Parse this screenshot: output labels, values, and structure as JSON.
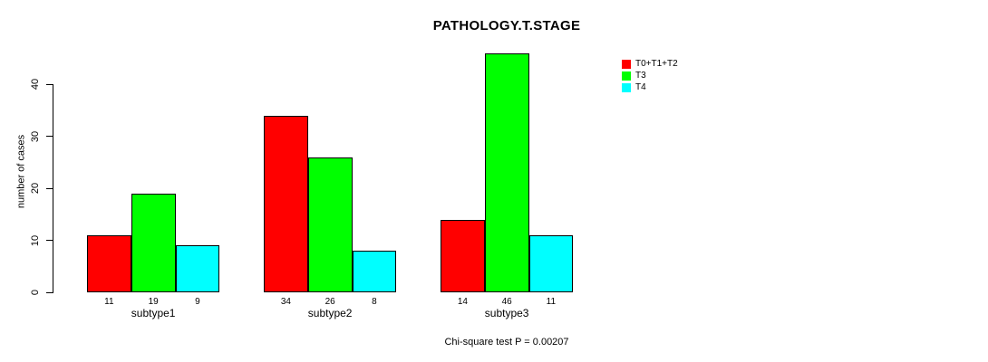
{
  "title": "PATHOLOGY.T.STAGE",
  "ylabel": "number of cases",
  "footnote": "Chi-square test P = 0.00207",
  "colors": {
    "series_red": "#FF0000",
    "series_green": "#00FF00",
    "series_cyan": "#00FFFF",
    "axis": "#000000",
    "background": "#FFFFFF"
  },
  "legend": {
    "position": "top-right",
    "items": [
      {
        "label": "T0+T1+T2",
        "color": "#FF0000"
      },
      {
        "label": "T3",
        "color": "#00FF00"
      },
      {
        "label": "T4",
        "color": "#00FFFF"
      }
    ]
  },
  "chart_data": {
    "type": "bar",
    "title": "PATHOLOGY.T.STAGE",
    "categories": [
      "subtype1",
      "subtype2",
      "subtype3"
    ],
    "series": [
      {
        "name": "T0+T1+T2",
        "color": "#FF0000",
        "values": [
          11,
          34,
          14
        ]
      },
      {
        "name": "T3",
        "color": "#00FF00",
        "values": [
          19,
          26,
          46
        ]
      },
      {
        "name": "T4",
        "color": "#00FFFF",
        "values": [
          9,
          8,
          11
        ]
      }
    ],
    "xlabel": "",
    "ylabel": "number of cases",
    "yticks": [
      0,
      10,
      20,
      30,
      40
    ],
    "ylim": [
      0,
      46
    ],
    "grid": false,
    "bar_value_labels_shown": true,
    "legend_position": "top-right",
    "annotation": "Chi-square test P = 0.00207"
  }
}
